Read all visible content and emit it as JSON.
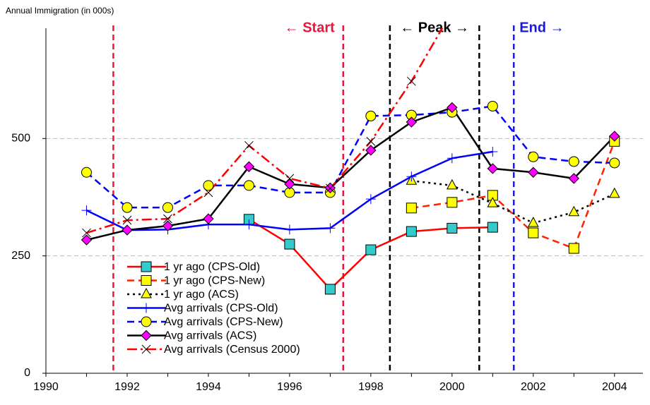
{
  "chart_data": {
    "type": "line",
    "ylabel": "Annual Immigration (in 000s)",
    "xlim": [
      1990,
      2004.7
    ],
    "xticks": [
      1990,
      1992,
      1994,
      1996,
      1998,
      2000,
      2002,
      2004
    ],
    "ylim": [
      0,
      735
    ],
    "yticks": [
      0,
      250,
      500
    ],
    "grid": true,
    "periods": [
      {
        "label": "← Start",
        "x": [
          1991.66,
          1997.32
        ],
        "color": "#e8173d"
      },
      {
        "label": "← Peak →",
        "x": [
          1998.47,
          2000.67
        ],
        "color": "#000000"
      },
      {
        "label": "End →",
        "x": [
          2001.52
        ],
        "color": "#1a1adb"
      }
    ],
    "series": [
      {
        "name": "1 yr ago (CPS-Old)",
        "color": "#ff0000",
        "dash": "solid",
        "marker": "square",
        "marker_color": "#33cccc",
        "x": [
          1995,
          1996,
          1997,
          1998,
          1999,
          2000,
          2001
        ],
        "values": [
          328,
          275,
          179,
          263,
          302,
          309,
          311
        ]
      },
      {
        "name": "1 yr ago (CPS-New)",
        "color": "#ff2200",
        "dash": "dashed",
        "marker": "square",
        "marker_color": "#ffff00",
        "x": [
          1999,
          2000,
          2001,
          2002,
          2003,
          2004
        ],
        "values": [
          352,
          364,
          379,
          299,
          266,
          494
        ]
      },
      {
        "name": "1 yr ago (ACS)",
        "color": "#000000",
        "dash": "dotted",
        "marker": "triangle",
        "marker_color": "#ffff00",
        "x": [
          1999,
          2000,
          2001,
          2002,
          2003,
          2004
        ],
        "values": [
          410,
          400,
          362,
          320,
          343,
          382
        ]
      },
      {
        "name": "Avg arrivals (CPS-Old)",
        "color": "#0000ff",
        "dash": "solid",
        "marker": "plus",
        "marker_color": "#0000ff",
        "x": [
          1991,
          1992,
          1993,
          1994,
          1995,
          1996,
          1997,
          1998,
          1999,
          2000,
          2001
        ],
        "values": [
          347,
          305,
          306,
          317,
          317,
          306,
          309,
          371,
          419,
          458,
          472
        ]
      },
      {
        "name": "Avg arrivals (CPS-New)",
        "color": "#0000ff",
        "dash": "dashed",
        "marker": "circle",
        "marker_color": "#ffff00",
        "x": [
          1991,
          1992,
          1993,
          1994,
          1995,
          1996,
          1997,
          1998,
          1999,
          2000,
          2001,
          2002,
          2003,
          2004
        ],
        "values": [
          428,
          353,
          353,
          400,
          400,
          385,
          385,
          548,
          550,
          556,
          569,
          461,
          451,
          448
        ]
      },
      {
        "name": "Avg arrivals (ACS)",
        "color": "#000000",
        "dash": "solid",
        "marker": "diamond",
        "marker_color": "#ff00ff",
        "x": [
          1991,
          1992,
          1993,
          1994,
          1995,
          1996,
          1997,
          1998,
          1999,
          2000,
          2001,
          2002,
          2003,
          2004
        ],
        "values": [
          284,
          305,
          314,
          329,
          440,
          403,
          395,
          475,
          535,
          566,
          436,
          428,
          415,
          505
        ]
      },
      {
        "name": "Avg arrivals (Census 2000)",
        "color": "#ff0000",
        "dash": "dashdot",
        "marker": "x",
        "marker_color": "#000000",
        "x": [
          1991,
          1992,
          1993,
          1994,
          1995,
          1996,
          1997,
          1998,
          1999,
          2000
        ],
        "values": [
          299,
          326,
          329,
          385,
          485,
          415,
          394,
          494,
          622,
          771
        ]
      }
    ]
  }
}
